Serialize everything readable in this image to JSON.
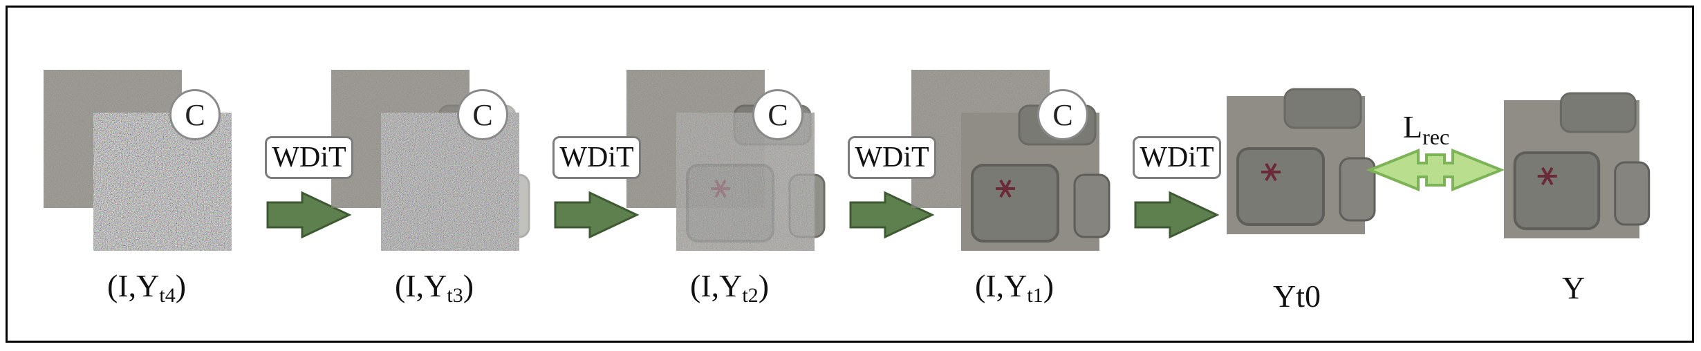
{
  "stages": [
    {
      "label_main": "(I,Y",
      "label_sub": "t4",
      "label_end": ")",
      "badge": "C",
      "op": "WDiT",
      "noise": 1.0
    },
    {
      "label_main": "(I,Y",
      "label_sub": "t3",
      "label_end": ")",
      "badge": "C",
      "op": "WDiT",
      "noise": 0.75
    },
    {
      "label_main": "(I,Y",
      "label_sub": "t2",
      "label_end": ")",
      "badge": "C",
      "op": "WDiT",
      "noise": 0.5
    },
    {
      "label_main": "(I,Y",
      "label_sub": "t1",
      "label_end": ")",
      "badge": "C",
      "op": "WDiT",
      "noise": 0.0
    }
  ],
  "output": {
    "label": "Yt0"
  },
  "target": {
    "label": "Y"
  },
  "loss": {
    "main": "L",
    "sub": "rec"
  },
  "colors": {
    "arrow_fill": "#5e7f4e",
    "arrow_stroke": "#3e5a33",
    "loss_fill": "#b8de8e",
    "loss_stroke": "#7cb356",
    "key": "#7a7a74"
  }
}
